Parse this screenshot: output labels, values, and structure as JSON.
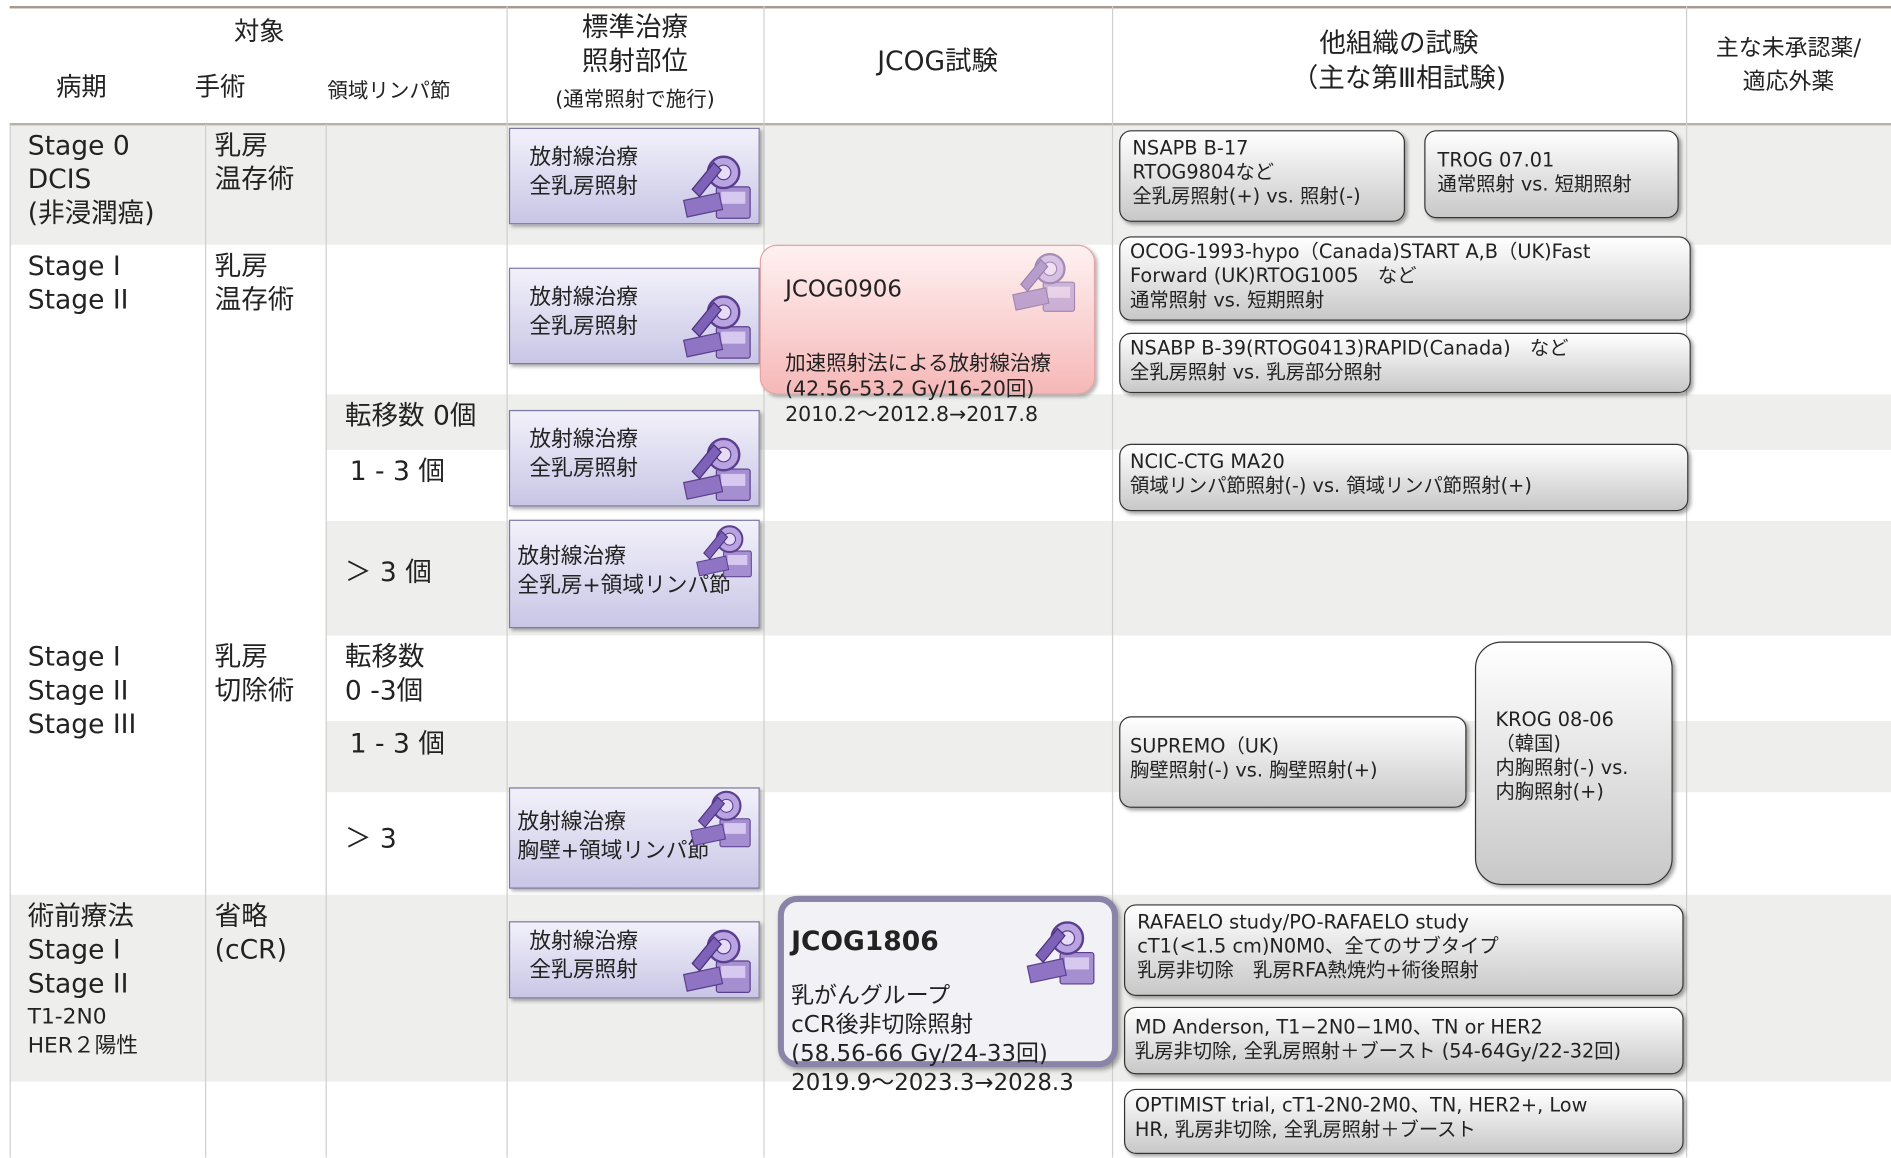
{
  "header": {
    "target": "対象",
    "stage": "病期",
    "surgery": "手術",
    "nodes": "領域リンパ節",
    "standard": "標準治療\n照射部位",
    "standard_note": "(通常照射で施行)",
    "jcog": "JCOG試験",
    "other": "他組織の試験",
    "other_sub": "（主な第Ⅲ相試験)",
    "unapproved": "主な未承認薬/\n適応外薬"
  },
  "stages": [
    "Stage 0\nDCIS\n(非浸潤癌)",
    "Stage I\nStage II",
    "Stage I\nStage II\nStage III",
    "術前療法\nStage I\nStage II"
  ],
  "stage_note": "T1-2N0\nHER２陽性",
  "surgeries": [
    "乳房\n温存術",
    "乳房\n温存術",
    "乳房\n切除術",
    "省略\n(cCR)"
  ],
  "nodes": [
    "転移数 0個",
    "1 - 3 個",
    "＞ 3 個",
    "転移数\n 0 -3個",
    "1 - 3 個",
    "＞ 3"
  ],
  "standard_boxes": [
    "放射線治療\n全乳房照射",
    "放射線治療\n全乳房照射",
    "放射線治療\n全乳房照射",
    "放射線治療\n全乳房+領域リンパ節",
    "放射線治療\n胸壁+領域リンパ節",
    "放射線治療\n全乳房照射"
  ],
  "jcog_trials": [
    {
      "id": "JCOG0906",
      "text": "加速照射法による放射線治療\n(42.56-53.2 Gy/16-20回)\n2010.2～2012.8→2017.8"
    },
    {
      "id": "JCOG1806",
      "text": "乳がんグループ\ncCR後非切除照射\n(58.56-66 Gy/24-33回)\n2019.9～2023.3→2028.3"
    }
  ],
  "other_trials": [
    "NSAPB B-17\nRTOG9804など\n全乳房照射(+) vs. 照射(-)",
    "TROG 07.01\n通常照射 vs. 短期照射",
    "OCOG-1993-hypo（Canada)START A,B（UK)Fast\nForward (UK)RTOG1005　など\n通常照射 vs. 短期照射",
    "NSABP B-39(RTOG0413)RAPID(Canada)　など\n全乳房照射 vs. 乳房部分照射",
    "NCIC-CTG MA20\n領域リンパ節照射(-) vs. 領域リンパ節照射(+)",
    "SUPREMO（UK)\n胸壁照射(-) vs. 胸壁照射(+)",
    "KROG 08-06\n（韓国)\n内胸照射(-) vs.\n内胸照射(+)",
    "RAFAELO study/PO-RAFAELO study\ncT1(<1.5 cm)N0M0、全てのサブタイプ\n乳房非切除　乳房RFA熱焼灼+術後照射",
    "MD Anderson, T1−2N0−1M0、TN or HER2\n乳房非切除, 全乳房照射＋ブースト (54-64Gy/22-32回)",
    "OPTIMIST trial, cT1-2N0-2M0、TN, HER2+, Low\nHR, 乳房非切除, 全乳房照射＋ブースト"
  ]
}
